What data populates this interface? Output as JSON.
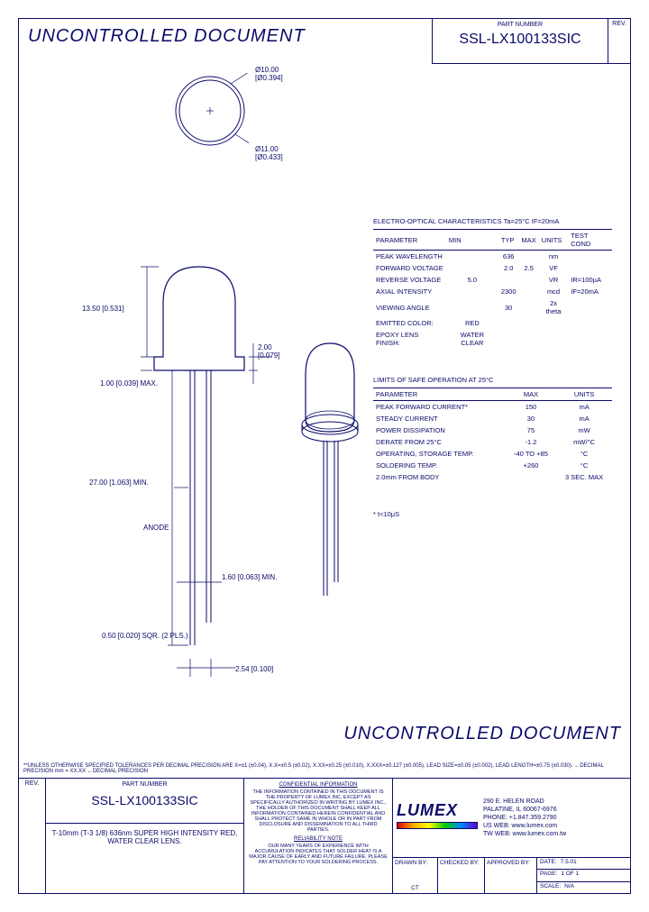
{
  "watermark": "UNCONTROLLED DOCUMENT",
  "header": {
    "part_label": "PART NUMBER",
    "part_number": "SSL-LX100133SIC",
    "rev_label": "REV."
  },
  "dims": {
    "d_outer": "Ø10.00 [Ø0.394]",
    "d_inner": "Ø11.00 [Ø0.433]",
    "h_body": "13.50 [0.531]",
    "flange": "2.00 [0.079]",
    "flange_h": "1.00 [0.039] MAX.",
    "lead_len": "27.00 [1.063] MIN.",
    "anode": "ANODE",
    "lead_gap": "1.60 [0.063] MIN.",
    "lead_sq": "0.50 [0.020] SQR. (2 PLS.)",
    "pitch": "2.54 [0.100]"
  },
  "table1": {
    "title": "ELECTRO-OPTICAL CHARACTERISTICS Ta=25°C    IF=20mA",
    "cols": [
      "PARAMETER",
      "MIN",
      "TYP",
      "MAX",
      "UNITS",
      "TEST COND"
    ],
    "rows": [
      [
        "PEAK WAVELENGTH",
        "",
        "636",
        "",
        "nm",
        ""
      ],
      [
        "FORWARD VOLTAGE",
        "",
        "2.0",
        "2.5",
        "VF",
        ""
      ],
      [
        "REVERSE VOLTAGE",
        "5.0",
        "",
        "",
        "VR",
        "IR=100µA"
      ],
      [
        "AXIAL INTENSITY",
        "",
        "2300",
        "",
        "mcd",
        "IF=20mA"
      ],
      [
        "VIEWING ANGLE",
        "",
        "30",
        "",
        "2x theta",
        ""
      ],
      [
        "EMITTED COLOR:",
        "RED",
        "",
        "",
        "",
        ""
      ],
      [
        "EPOXY LENS FINISH:",
        "WATER CLEAR",
        "",
        "",
        "",
        ""
      ]
    ]
  },
  "table2": {
    "title": "LIMITS OF SAFE OPERATION AT 25°C",
    "cols": [
      "PARAMETER",
      "MAX",
      "UNITS"
    ],
    "rows": [
      [
        "PEAK FORWARD CURRENT*",
        "150",
        "mA"
      ],
      [
        "STEADY CURRENT",
        "30",
        "mA"
      ],
      [
        "POWER DISSIPATION",
        "75",
        "mW"
      ],
      [
        "DERATE FROM 25°C",
        "-1.2",
        "mW/°C"
      ],
      [
        "OPERATING, STORAGE TEMP.",
        "-40 TO +85",
        "°C"
      ],
      [
        "SOLDERING TEMP.",
        "+260",
        "°C"
      ],
      [
        "2.0mm FROM BODY",
        "",
        "3 SEC. MAX"
      ]
    ],
    "footnote": "* t<10µS"
  },
  "specnote": "**UNLESS OTHERWISE SPECIFIED TOLERANCES PER DECIMAL PRECISION ARE X=±1 (±0.04), X.X=±0.5 (±0.02), X.XX=±0.25 (±0.010), X.XXX=±0.127 (±0.005). LEAD SIZE=±0.05 (±0.002), LEAD LENGTH=±0.75 (±0.030). ←DECIMAL PRECISION    mm = XX.XX ←DECIMAL PRECISION",
  "footer": {
    "rev_label": "REV.",
    "part_label": "PART NUMBER",
    "part_number": "SSL-LX100133SIC",
    "desc": "T-10mm (T-3 1/8) 636nm SUPER HIGH INTENSITY RED, WATER CLEAR LENS.",
    "conf_h": "CONFIDENTIAL INFORMATION",
    "conf": "THE INFORMATION CONTAINED IN THIS DOCUMENT IS THE PROPERTY OF LUMEX INC. EXCEPT AS SPECIFICALLY AUTHORIZED IN WRITING BY LUMEX INC., THE HOLDER OF THIS DOCUMENT SHALL KEEP ALL INFORMATION CONTAINED HEREIN CONFIDENTIAL AND SHALL PROTECT SAME IN WHOLE OR IN PART FROM DISCLOSURE AND DISSEMINATION TO ALL THIRD PARTIES.",
    "rel_h": "RELIABILITY NOTE",
    "rel": "OUR MANY YEARS OF EXPERIENCE WITH ACCUMULATION INDICATES THAT SOLDER HEAT IS A MAJOR CAUSE OF EARLY AND FUTURE FAILURE. PLEASE PAY ATTENTION TO YOUR SOLDERING PROCESS.",
    "logo": "LUMEX",
    "addr": [
      "290 E. HELEN ROAD",
      "PALATINE, IL  60067-6976",
      "PHONE: +1.847.359.2790",
      "US WEB: www.lumex.com",
      "TW WEB: www.lumex.com.tw"
    ],
    "sig": {
      "drawn": "DRAWN BY:",
      "drawn_v": "CT",
      "checked": "CHECKED BY:",
      "approved": "APPROVED BY:"
    },
    "meta": {
      "date_l": "DATE:",
      "date": "7.5.01",
      "page_l": "PAGE:",
      "page": "1 OF 1",
      "scale_l": "SCALE:",
      "scale": "N/A"
    }
  },
  "colors": {
    "ink": "#0a0a6a",
    "bg": "#ffffff"
  }
}
